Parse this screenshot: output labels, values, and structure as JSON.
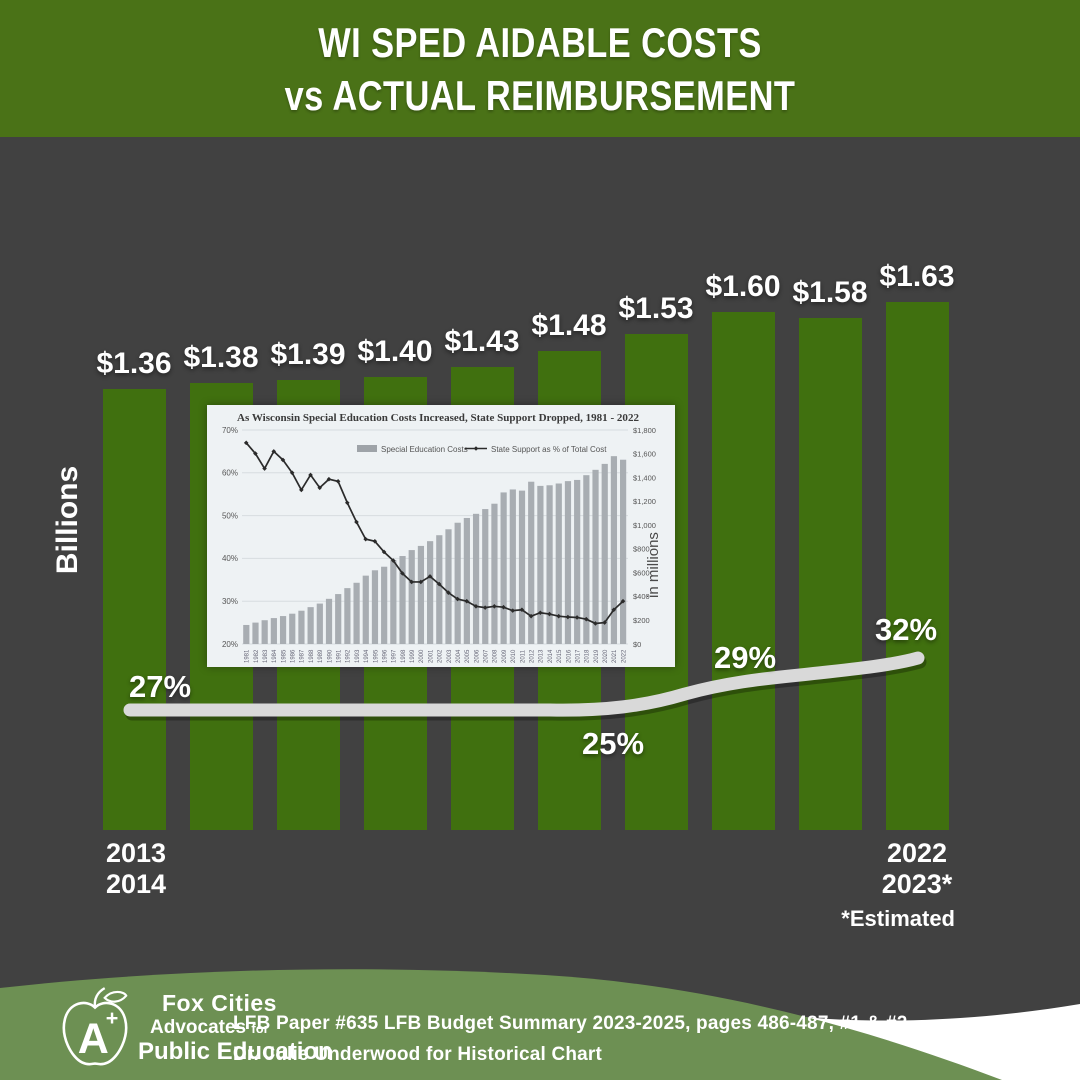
{
  "header": {
    "title_line1": "WI SPED AIDABLE COSTS",
    "title_line2": "vs ACTUAL REIMBURSEMENT"
  },
  "colors": {
    "background": "#414141",
    "header_green": "#4a7217",
    "bar_green": "#40700f",
    "footer_green": "#6d9053",
    "main_line_gray": "#d9d9d9",
    "inset_background": "#eef2f4",
    "inset_bar_gray": "#a8adb2",
    "inset_line_black": "#2b2b2b",
    "white": "#ffffff"
  },
  "chart_data": [
    {
      "type": "bar",
      "title": "WI SPED AIDABLE COSTS vs ACTUAL REIMBURSEMENT",
      "ylabel": "Billions",
      "x_first": [
        "2013",
        "2014"
      ],
      "x_last": [
        "2022",
        "2023*"
      ],
      "bar_labels": [
        "$1.36",
        "$1.38",
        "$1.39",
        "$1.40",
        "$1.43",
        "$1.48",
        "$1.53",
        "$1.60",
        "$1.58",
        "$1.63"
      ],
      "values_billions": [
        1.36,
        1.38,
        1.39,
        1.4,
        1.43,
        1.48,
        1.53,
        1.6,
        1.58,
        1.63
      ],
      "ylim": [
        0,
        1.63
      ],
      "line_labels": [
        "27%",
        "25%",
        "29%",
        "32%"
      ],
      "note": "*Estimated",
      "legend_position": "none",
      "grid": false
    },
    {
      "type": "bar+line",
      "title": "As Wisconsin Special Education Costs Increased, State Support Dropped, 1981 - 2022",
      "legend": [
        "Special Education Costs",
        "State Support as % of Total Cost"
      ],
      "years": [
        1981,
        1982,
        1983,
        1984,
        1985,
        1986,
        1987,
        1988,
        1989,
        1990,
        1991,
        1992,
        1993,
        1994,
        1995,
        1996,
        1997,
        1998,
        1999,
        2000,
        2001,
        2002,
        2003,
        2004,
        2005,
        2006,
        2007,
        2008,
        2009,
        2010,
        2011,
        2012,
        2013,
        2014,
        2015,
        2016,
        2017,
        2018,
        2019,
        2020,
        2021,
        2022
      ],
      "bars_millions": [
        160,
        180,
        200,
        218,
        235,
        255,
        280,
        310,
        340,
        380,
        420,
        470,
        515,
        575,
        620,
        650,
        705,
        740,
        790,
        825,
        865,
        915,
        965,
        1020,
        1060,
        1095,
        1135,
        1180,
        1275,
        1300,
        1290,
        1365,
        1330,
        1335,
        1350,
        1370,
        1380,
        1420,
        1465,
        1515,
        1580,
        1550
      ],
      "line_percent": [
        67,
        64.5,
        61,
        65,
        63,
        60,
        56,
        59.5,
        56.5,
        58.5,
        58,
        53,
        48.5,
        44.5,
        44,
        41.5,
        39.5,
        36.5,
        34.5,
        34.5,
        35.8,
        34,
        32,
        30.5,
        30,
        28.8,
        28.5,
        28.8,
        28.6,
        27.8,
        28,
        26.5,
        27.3,
        27,
        26.5,
        26.3,
        26.2,
        25.8,
        24.8,
        25,
        28,
        30
      ],
      "left_axis": {
        "ticks": [
          "70%",
          "60%",
          "50%",
          "40%",
          "30%",
          "20%"
        ],
        "range": [
          20,
          70
        ]
      },
      "right_axis": {
        "ticks": [
          "$1,800",
          "$1,600",
          "$1,400",
          "$1,200",
          "$1,000",
          "$800",
          "$600",
          "$400",
          "$200",
          "$0"
        ],
        "range": [
          0,
          1800
        ],
        "label": "in millions"
      },
      "grid": true,
      "legend_position": "top"
    }
  ],
  "footer": {
    "logo": {
      "line1": "Fox Cities",
      "line2": "Advocates",
      "line2_small": "for",
      "line3": "Public Education"
    },
    "citation_line1": "LFB Paper #635 LFB Budget Summary 2023-2025, pages 486-487, #1 & #2",
    "citation_line2": "Dr. Julie Underwood for Historical Chart"
  }
}
